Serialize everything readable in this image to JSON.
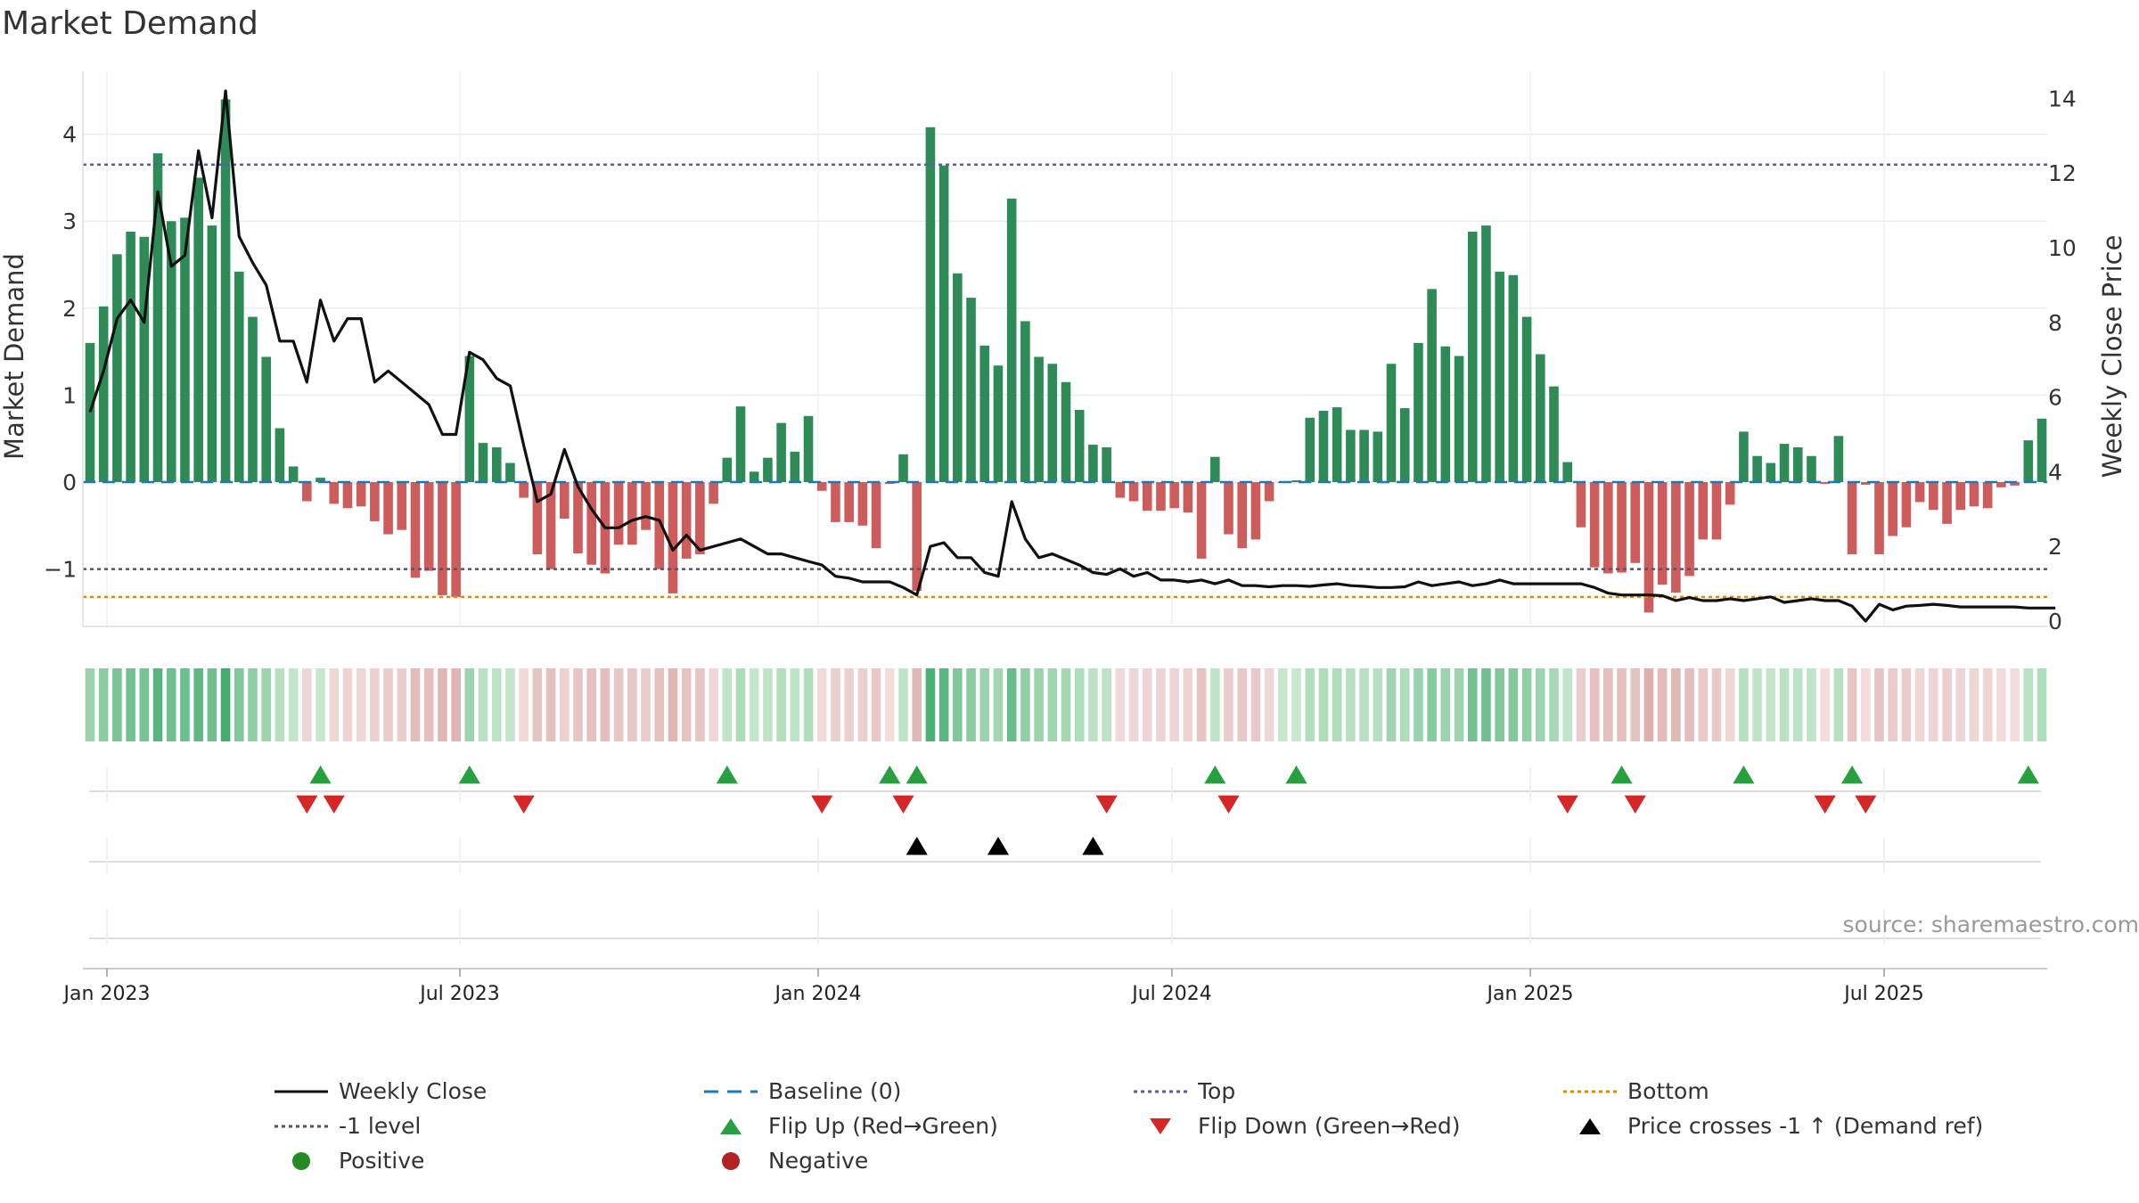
{
  "title": "Market Demand",
  "source": "source: sharemaestro.com",
  "colors": {
    "positive": "#2e8b57",
    "negative": "#cd5c5c",
    "close": "#111111",
    "baseline": "#1f77b4",
    "top": "#5b5ba8",
    "minus1": "#555566",
    "bottom": "#e08a00",
    "flip_up": "#27a040",
    "flip_down": "#d62728",
    "cross": "#000000",
    "positive_dot": "#228b22",
    "negative_dot": "#b22222"
  },
  "chart_data": {
    "type": "bar",
    "x_axis": {
      "ticks": [
        "Jan 2023",
        "Jul 2023",
        "Jan 2024",
        "Jul 2024",
        "Jan 2025",
        "Jul 2025"
      ]
    },
    "y_left": {
      "label": "Market Demand",
      "range": [
        -1.6,
        4.6
      ],
      "ticks": [
        "0",
        "1",
        "2",
        "3",
        "4"
      ],
      "neg_tick": "−1"
    },
    "y_right": {
      "label": "Weekly Close Price",
      "range": [
        0,
        14.4
      ],
      "ticks": [
        "0",
        "2",
        "4",
        "6",
        "8",
        "10",
        "12",
        "14"
      ]
    },
    "reference_lines": {
      "top": 3.65,
      "minus1": -1.0,
      "bottom": -1.32,
      "baseline": 0
    },
    "demand": [
      1.6,
      2.02,
      2.62,
      2.88,
      2.82,
      3.78,
      3.0,
      3.04,
      3.5,
      2.95,
      4.4,
      2.42,
      1.9,
      1.44,
      0.62,
      0.18,
      -0.22,
      0.05,
      -0.25,
      -0.3,
      -0.28,
      -0.45,
      -0.6,
      -0.55,
      -1.1,
      -1.02,
      -1.3,
      -1.32,
      1.45,
      0.45,
      0.4,
      0.22,
      -0.18,
      -0.83,
      -1.0,
      -0.42,
      -0.82,
      -0.95,
      -1.05,
      -0.72,
      -0.72,
      -0.55,
      -1.0,
      -1.28,
      -0.88,
      -0.83,
      -0.25,
      0.28,
      0.87,
      0.12,
      0.28,
      0.68,
      0.35,
      0.76,
      -0.1,
      -0.46,
      -0.46,
      -0.5,
      -0.76,
      -0.02,
      0.32,
      -1.25,
      4.08,
      3.64,
      2.4,
      2.12,
      1.57,
      1.34,
      3.26,
      1.85,
      1.44,
      1.36,
      1.15,
      0.83,
      0.43,
      0.4,
      -0.18,
      -0.22,
      -0.33,
      -0.33,
      -0.3,
      -0.35,
      -0.88,
      0.29,
      -0.6,
      -0.76,
      -0.66,
      -0.22,
      0.0,
      0.02,
      0.74,
      0.82,
      0.86,
      0.6,
      0.6,
      0.58,
      1.36,
      0.85,
      1.6,
      2.22,
      1.56,
      1.45,
      2.88,
      2.95,
      2.42,
      2.38,
      1.9,
      1.47,
      1.1,
      0.23,
      -0.52,
      -0.98,
      -1.05,
      -1.04,
      -0.93,
      -1.5,
      -1.18,
      -1.27,
      -1.08,
      -0.66,
      -0.66,
      -0.26,
      0.58,
      0.3,
      0.22,
      0.44,
      0.4,
      0.3,
      -0.02,
      0.53,
      -0.83,
      -0.03,
      -0.83,
      -0.62,
      -0.52,
      -0.23,
      -0.32,
      -0.48,
      -0.32,
      -0.28,
      -0.3,
      -0.06,
      -0.04,
      0.48,
      0.73
    ],
    "close": [
      5.6,
      6.7,
      8.1,
      8.6,
      8.0,
      11.5,
      9.5,
      9.8,
      12.6,
      10.8,
      14.2,
      10.3,
      9.6,
      9.0,
      7.5,
      7.5,
      6.4,
      8.6,
      7.5,
      8.1,
      8.1,
      6.4,
      6.7,
      6.4,
      6.1,
      5.8,
      5.0,
      5.0,
      7.2,
      7.0,
      6.5,
      6.3,
      4.7,
      3.2,
      3.4,
      4.6,
      3.6,
      3.0,
      2.5,
      2.5,
      2.7,
      2.8,
      2.7,
      1.9,
      2.3,
      1.9,
      2.0,
      2.1,
      2.2,
      2.0,
      1.8,
      1.8,
      1.7,
      1.6,
      1.5,
      1.2,
      1.15,
      1.05,
      1.05,
      1.05,
      0.9,
      0.7,
      2.0,
      2.1,
      1.7,
      1.7,
      1.3,
      1.2,
      3.2,
      2.2,
      1.7,
      1.8,
      1.65,
      1.5,
      1.3,
      1.25,
      1.4,
      1.2,
      1.3,
      1.1,
      1.1,
      1.05,
      1.1,
      1.0,
      1.1,
      0.95,
      0.95,
      0.92,
      0.95,
      0.95,
      0.93,
      0.97,
      1.0,
      0.95,
      0.93,
      0.9,
      0.9,
      0.92,
      1.05,
      0.95,
      1.0,
      1.05,
      0.95,
      1.0,
      1.1,
      1.0,
      1.0,
      1.0,
      1.0,
      1.0,
      1.0,
      0.9,
      0.75,
      0.7,
      0.7,
      0.7,
      0.68,
      0.55,
      0.63,
      0.55,
      0.55,
      0.6,
      0.55,
      0.6,
      0.65,
      0.5,
      0.55,
      0.6,
      0.55,
      0.55,
      0.4,
      0.0,
      0.45,
      0.3,
      0.4,
      0.42,
      0.45,
      0.42,
      0.38,
      0.38,
      0.38,
      0.38,
      0.38,
      0.35,
      0.35,
      0.35
    ],
    "flip_up": [
      17,
      28,
      47,
      59,
      61,
      83,
      89,
      113,
      122,
      130,
      143
    ],
    "flip_down": [
      16,
      18,
      32,
      54,
      60,
      75,
      84,
      109,
      114,
      128,
      131
    ],
    "price_cross": [
      61,
      67,
      74
    ]
  },
  "legend": {
    "items": [
      {
        "label": "Weekly Close",
        "sym": "line",
        "color": "#111111"
      },
      {
        "label": "Baseline (0)",
        "sym": "dash",
        "color": "#1f77b4"
      },
      {
        "label": "Top",
        "sym": "dot",
        "color": "#5b5ba8"
      },
      {
        "label": "Bottom",
        "sym": "dot",
        "color": "#e08a00"
      },
      {
        "label": "-1 level",
        "sym": "dot",
        "color": "#555566"
      },
      {
        "label": "Flip Up (Red→Green)",
        "sym": "tri-up",
        "color": "#27a040"
      },
      {
        "label": "Flip Down (Green→Red)",
        "sym": "tri-down",
        "color": "#d62728"
      },
      {
        "label": "Price crosses -1 ↑ (Demand ref)",
        "sym": "tri-up",
        "color": "#000000"
      },
      {
        "label": "Positive",
        "sym": "circle",
        "color": "#228b22"
      },
      {
        "label": "Negative",
        "sym": "circle",
        "color": "#b22222"
      }
    ]
  }
}
